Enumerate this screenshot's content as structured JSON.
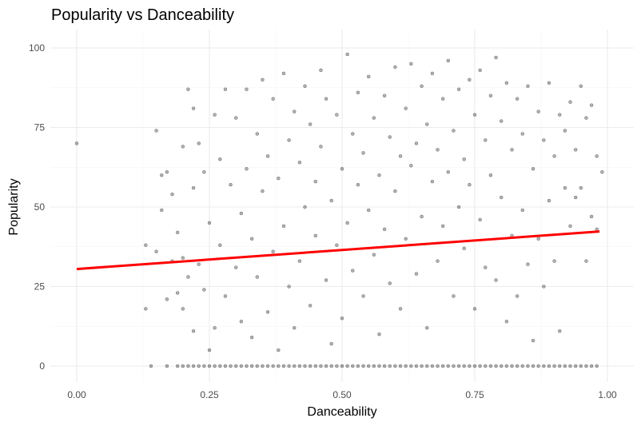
{
  "chart_data": {
    "type": "scatter",
    "title": "Popularity vs Danceability",
    "xlabel": "Danceability",
    "ylabel": "Popularity",
    "xlim": [
      0,
      1
    ],
    "ylim": [
      0,
      100
    ],
    "x_ticks": [
      0,
      0.25,
      0.5,
      0.75,
      1.0
    ],
    "x_tick_labels": [
      "0.00",
      "0.25",
      "0.50",
      "0.75",
      "1.00"
    ],
    "y_ticks": [
      0,
      25,
      50,
      75,
      100
    ],
    "y_tick_labels": [
      "0",
      "25",
      "50",
      "75",
      "100"
    ],
    "grid": true,
    "legend": "none",
    "series": [
      {
        "type": "scatter",
        "color": "#000000",
        "points": [
          [
            0.0,
            70
          ],
          [
            0.13,
            18
          ],
          [
            0.13,
            38
          ],
          [
            0.14,
            0
          ],
          [
            0.15,
            36
          ],
          [
            0.15,
            74
          ],
          [
            0.16,
            60
          ],
          [
            0.16,
            49
          ],
          [
            0.17,
            0
          ],
          [
            0.17,
            21
          ],
          [
            0.17,
            61
          ],
          [
            0.18,
            54
          ],
          [
            0.18,
            33
          ],
          [
            0.19,
            0
          ],
          [
            0.19,
            23
          ],
          [
            0.19,
            42
          ],
          [
            0.2,
            0
          ],
          [
            0.2,
            69
          ],
          [
            0.2,
            34
          ],
          [
            0.2,
            18
          ],
          [
            0.21,
            0
          ],
          [
            0.21,
            87
          ],
          [
            0.21,
            28
          ],
          [
            0.22,
            0
          ],
          [
            0.22,
            81
          ],
          [
            0.22,
            11
          ],
          [
            0.22,
            56
          ],
          [
            0.23,
            0
          ],
          [
            0.23,
            70
          ],
          [
            0.23,
            32
          ],
          [
            0.24,
            0
          ],
          [
            0.24,
            61
          ],
          [
            0.24,
            24
          ],
          [
            0.25,
            0
          ],
          [
            0.25,
            5
          ],
          [
            0.25,
            45
          ],
          [
            0.26,
            0
          ],
          [
            0.26,
            79
          ],
          [
            0.26,
            12
          ],
          [
            0.27,
            0
          ],
          [
            0.27,
            65
          ],
          [
            0.27,
            38
          ],
          [
            0.28,
            0
          ],
          [
            0.28,
            87
          ],
          [
            0.28,
            22
          ],
          [
            0.29,
            0
          ],
          [
            0.29,
            57
          ],
          [
            0.3,
            0
          ],
          [
            0.3,
            78
          ],
          [
            0.3,
            31
          ],
          [
            0.31,
            0
          ],
          [
            0.31,
            48
          ],
          [
            0.31,
            14
          ],
          [
            0.32,
            0
          ],
          [
            0.32,
            87
          ],
          [
            0.32,
            62
          ],
          [
            0.33,
            0
          ],
          [
            0.33,
            40
          ],
          [
            0.33,
            9
          ],
          [
            0.34,
            0
          ],
          [
            0.34,
            73
          ],
          [
            0.34,
            28
          ],
          [
            0.35,
            0
          ],
          [
            0.35,
            90
          ],
          [
            0.35,
            55
          ],
          [
            0.36,
            0
          ],
          [
            0.36,
            17
          ],
          [
            0.36,
            66
          ],
          [
            0.37,
            0
          ],
          [
            0.37,
            84
          ],
          [
            0.37,
            36
          ],
          [
            0.38,
            0
          ],
          [
            0.38,
            5
          ],
          [
            0.38,
            59
          ],
          [
            0.39,
            0
          ],
          [
            0.39,
            92
          ],
          [
            0.39,
            44
          ],
          [
            0.4,
            0
          ],
          [
            0.4,
            71
          ],
          [
            0.4,
            25
          ],
          [
            0.41,
            0
          ],
          [
            0.41,
            80
          ],
          [
            0.41,
            12
          ],
          [
            0.42,
            0
          ],
          [
            0.42,
            64
          ],
          [
            0.42,
            33
          ],
          [
            0.43,
            0
          ],
          [
            0.43,
            88
          ],
          [
            0.43,
            50
          ],
          [
            0.44,
            0
          ],
          [
            0.44,
            76
          ],
          [
            0.44,
            19
          ],
          [
            0.45,
            0
          ],
          [
            0.45,
            58
          ],
          [
            0.45,
            41
          ],
          [
            0.46,
            0
          ],
          [
            0.46,
            93
          ],
          [
            0.46,
            69
          ],
          [
            0.47,
            0
          ],
          [
            0.47,
            27
          ],
          [
            0.47,
            84
          ],
          [
            0.48,
            0
          ],
          [
            0.48,
            52
          ],
          [
            0.48,
            7
          ],
          [
            0.49,
            0
          ],
          [
            0.49,
            79
          ],
          [
            0.49,
            38
          ],
          [
            0.5,
            0
          ],
          [
            0.5,
            62
          ],
          [
            0.5,
            15
          ],
          [
            0.51,
            0
          ],
          [
            0.51,
            98
          ],
          [
            0.51,
            45
          ],
          [
            0.52,
            0
          ],
          [
            0.52,
            73
          ],
          [
            0.52,
            30
          ],
          [
            0.53,
            0
          ],
          [
            0.53,
            86
          ],
          [
            0.53,
            57
          ],
          [
            0.54,
            0
          ],
          [
            0.54,
            67
          ],
          [
            0.54,
            22
          ],
          [
            0.55,
            0
          ],
          [
            0.55,
            91
          ],
          [
            0.55,
            49
          ],
          [
            0.56,
            0
          ],
          [
            0.56,
            78
          ],
          [
            0.56,
            35
          ],
          [
            0.57,
            0
          ],
          [
            0.57,
            60
          ],
          [
            0.57,
            10
          ],
          [
            0.58,
            0
          ],
          [
            0.58,
            85
          ],
          [
            0.58,
            43
          ],
          [
            0.59,
            0
          ],
          [
            0.59,
            72
          ],
          [
            0.59,
            26
          ],
          [
            0.6,
            0
          ],
          [
            0.6,
            94
          ],
          [
            0.6,
            55
          ],
          [
            0.61,
            0
          ],
          [
            0.61,
            66
          ],
          [
            0.61,
            18
          ],
          [
            0.62,
            0
          ],
          [
            0.62,
            81
          ],
          [
            0.62,
            40
          ],
          [
            0.63,
            0
          ],
          [
            0.63,
            95
          ],
          [
            0.63,
            63
          ],
          [
            0.64,
            0
          ],
          [
            0.64,
            70
          ],
          [
            0.64,
            29
          ],
          [
            0.65,
            0
          ],
          [
            0.65,
            88
          ],
          [
            0.65,
            47
          ],
          [
            0.66,
            0
          ],
          [
            0.66,
            76
          ],
          [
            0.66,
            12
          ],
          [
            0.67,
            0
          ],
          [
            0.67,
            92
          ],
          [
            0.67,
            58
          ],
          [
            0.68,
            0
          ],
          [
            0.68,
            68
          ],
          [
            0.68,
            33
          ],
          [
            0.69,
            0
          ],
          [
            0.69,
            84
          ],
          [
            0.69,
            44
          ],
          [
            0.7,
            0
          ],
          [
            0.7,
            96
          ],
          [
            0.7,
            61
          ],
          [
            0.71,
            0
          ],
          [
            0.71,
            74
          ],
          [
            0.71,
            22
          ],
          [
            0.72,
            0
          ],
          [
            0.72,
            87
          ],
          [
            0.72,
            50
          ],
          [
            0.73,
            0
          ],
          [
            0.73,
            65
          ],
          [
            0.73,
            37
          ],
          [
            0.74,
            0
          ],
          [
            0.74,
            90
          ],
          [
            0.74,
            57
          ],
          [
            0.75,
            0
          ],
          [
            0.75,
            79
          ],
          [
            0.75,
            18
          ],
          [
            0.76,
            0
          ],
          [
            0.76,
            93
          ],
          [
            0.76,
            46
          ],
          [
            0.77,
            0
          ],
          [
            0.77,
            71
          ],
          [
            0.77,
            31
          ],
          [
            0.78,
            0
          ],
          [
            0.78,
            85
          ],
          [
            0.78,
            60
          ],
          [
            0.79,
            0
          ],
          [
            0.79,
            97
          ],
          [
            0.79,
            27
          ],
          [
            0.8,
            0
          ],
          [
            0.8,
            77
          ],
          [
            0.8,
            53
          ],
          [
            0.81,
            0
          ],
          [
            0.81,
            89
          ],
          [
            0.81,
            14
          ],
          [
            0.82,
            0
          ],
          [
            0.82,
            68
          ],
          [
            0.82,
            41
          ],
          [
            0.83,
            0
          ],
          [
            0.83,
            84
          ],
          [
            0.83,
            22
          ],
          [
            0.84,
            0
          ],
          [
            0.84,
            73
          ],
          [
            0.84,
            49
          ],
          [
            0.85,
            0
          ],
          [
            0.85,
            88
          ],
          [
            0.85,
            32
          ],
          [
            0.86,
            0
          ],
          [
            0.86,
            62
          ],
          [
            0.86,
            8
          ],
          [
            0.87,
            0
          ],
          [
            0.87,
            80
          ],
          [
            0.87,
            40
          ],
          [
            0.88,
            0
          ],
          [
            0.88,
            71
          ],
          [
            0.88,
            25
          ],
          [
            0.89,
            0
          ],
          [
            0.89,
            89
          ],
          [
            0.89,
            52
          ],
          [
            0.9,
            0
          ],
          [
            0.9,
            66
          ],
          [
            0.9,
            33
          ],
          [
            0.91,
            0
          ],
          [
            0.91,
            79
          ],
          [
            0.91,
            11
          ],
          [
            0.92,
            0
          ],
          [
            0.92,
            56
          ],
          [
            0.92,
            74
          ],
          [
            0.93,
            0
          ],
          [
            0.93,
            83
          ],
          [
            0.93,
            44
          ],
          [
            0.94,
            0
          ],
          [
            0.94,
            53
          ],
          [
            0.94,
            68
          ],
          [
            0.95,
            0
          ],
          [
            0.95,
            88
          ],
          [
            0.95,
            56
          ],
          [
            0.96,
            0
          ],
          [
            0.96,
            78
          ],
          [
            0.96,
            33
          ],
          [
            0.97,
            0
          ],
          [
            0.97,
            82
          ],
          [
            0.97,
            47
          ],
          [
            0.98,
            0
          ],
          [
            0.98,
            66
          ],
          [
            0.98,
            43
          ],
          [
            0.99,
            61
          ]
        ]
      }
    ],
    "trend_line": {
      "type": "line",
      "color": "#ff0000",
      "points": [
        [
          0.0,
          30.5
        ],
        [
          0.985,
          42.3
        ]
      ]
    }
  }
}
